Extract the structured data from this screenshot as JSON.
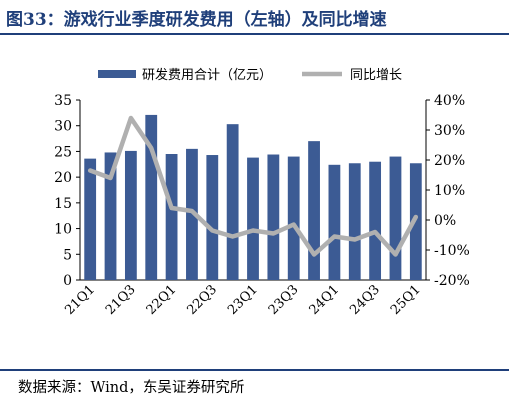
{
  "header": {
    "title": "图33：游戏行业季度研发费用（左轴）及同比增速"
  },
  "footer": {
    "source": "数据来源：Wind，东吴证券研究所"
  },
  "colors": {
    "bar": "#3c5b94",
    "line": "#b0b0b0",
    "title": "#1f3f7a"
  },
  "chart_data": {
    "type": "bar",
    "categories": [
      "21Q1",
      "21Q2",
      "21Q3",
      "21Q4",
      "22Q1",
      "22Q2",
      "22Q3",
      "22Q4",
      "23Q1",
      "23Q2",
      "23Q3",
      "23Q4",
      "24Q1",
      "24Q2",
      "24Q3",
      "24Q4",
      "25Q1"
    ],
    "category_labels_shown": [
      "21Q1",
      "21Q3",
      "22Q1",
      "22Q3",
      "23Q1",
      "23Q3",
      "24Q1",
      "24Q3",
      "25Q1"
    ],
    "series": [
      {
        "name": "研发费用合计（亿元）",
        "type": "bar",
        "axis": "left",
        "values": [
          23.6,
          24.8,
          25.1,
          32.1,
          24.5,
          25.5,
          24.3,
          30.3,
          23.8,
          24.4,
          24.0,
          27.0,
          22.4,
          22.7,
          23.0,
          24.0,
          22.7
        ]
      },
      {
        "name": "同比增长",
        "type": "line",
        "axis": "right",
        "values": [
          16.5,
          14.0,
          34.0,
          24.0,
          4.0,
          3.0,
          -3.5,
          -5.5,
          -3.5,
          -4.5,
          -1.5,
          -11.5,
          -5.5,
          -6.5,
          -4.0,
          -11.5,
          1.0
        ]
      }
    ],
    "y_left": {
      "min": 0,
      "max": 35,
      "ticks": [
        0,
        5,
        10,
        15,
        20,
        25,
        30,
        35
      ]
    },
    "y_right": {
      "min": -20,
      "max": 40,
      "ticks": [
        -20,
        -10,
        0,
        10,
        20,
        30,
        40
      ],
      "unit": "%"
    },
    "legend_placement": "top",
    "grid": false
  }
}
